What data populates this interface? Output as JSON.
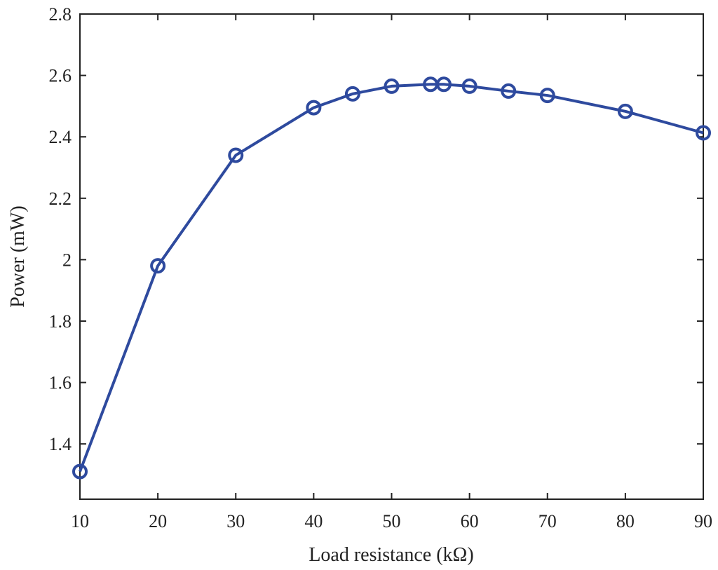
{
  "chart_data": {
    "type": "line",
    "title": "",
    "xlabel": "Load resistance (kΩ)",
    "ylabel": "Power (mW)",
    "xlim": [
      10,
      90
    ],
    "ylim": [
      1.22,
      2.8
    ],
    "xticks": [
      10,
      20,
      30,
      40,
      50,
      60,
      70,
      80,
      90
    ],
    "xtick_labels": [
      "10",
      "20",
      "30",
      "40",
      "50",
      "60",
      "70",
      "80",
      "90"
    ],
    "yticks": [
      1.4,
      1.6,
      1.8,
      2.0,
      2.2,
      2.4,
      2.6,
      2.8
    ],
    "ytick_labels": [
      "1.4",
      "1.6",
      "1.8",
      "2",
      "2.2",
      "2.4",
      "2.6",
      "2.8"
    ],
    "grid": false,
    "series": [
      {
        "marker": "circle",
        "color": "#2e4a9e",
        "x": [
          10,
          20,
          30,
          40,
          45,
          50,
          55,
          56.7,
          60,
          65,
          70,
          80,
          90
        ],
        "y": [
          1.31,
          1.98,
          2.34,
          2.495,
          2.54,
          2.565,
          2.571,
          2.571,
          2.565,
          2.549,
          2.535,
          2.483,
          2.413
        ]
      }
    ]
  }
}
